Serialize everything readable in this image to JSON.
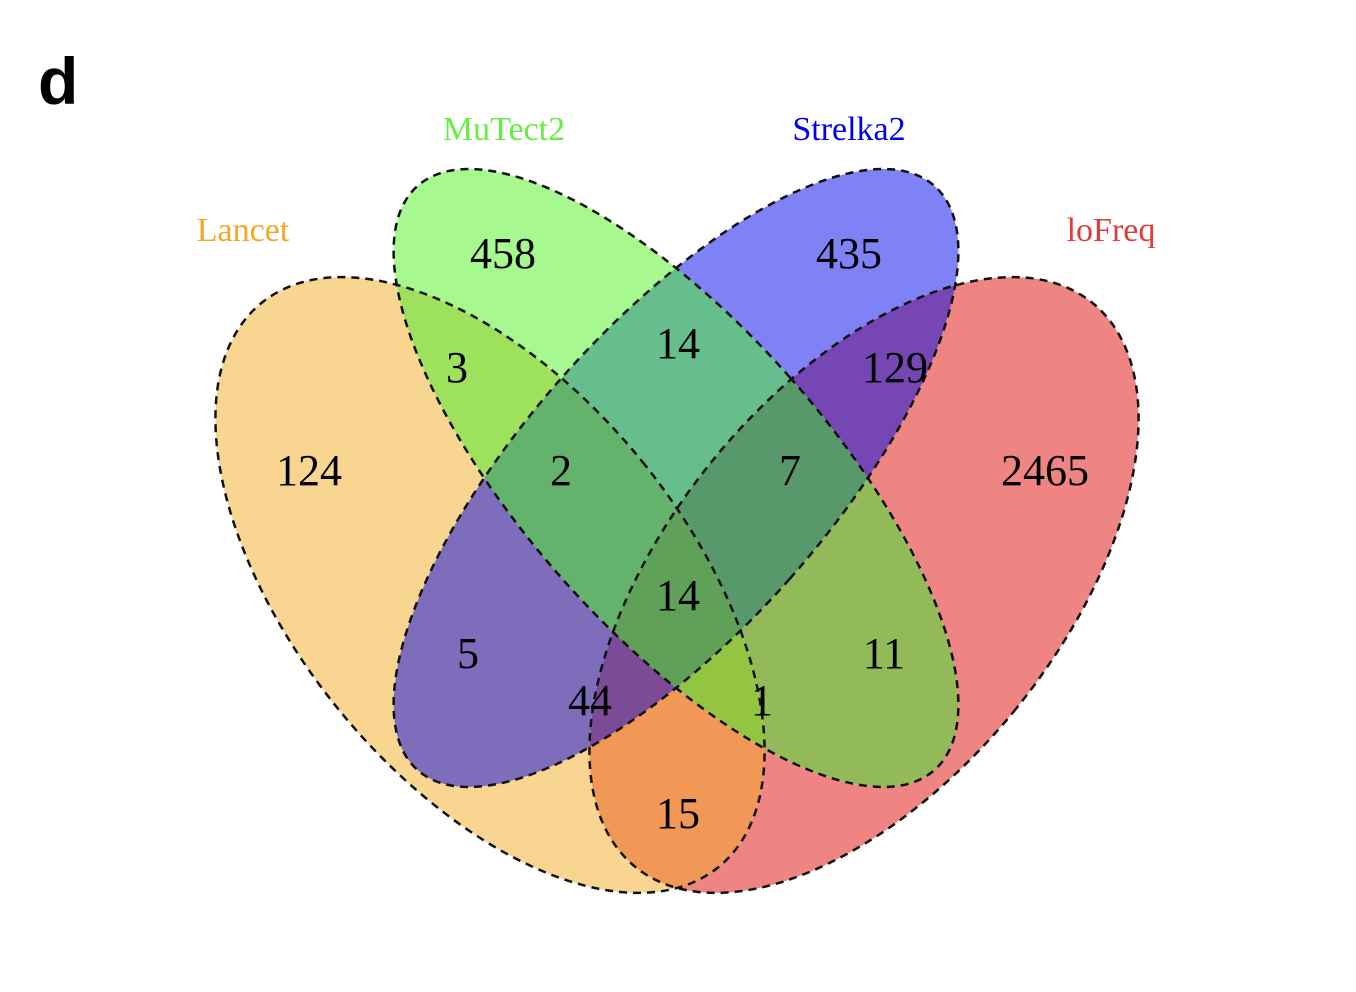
{
  "panel_label": "d",
  "sets": [
    {
      "key": "lancet",
      "name": "Lancet",
      "color": "#F5A623",
      "fill": "#F8D591"
    },
    {
      "key": "mutect2",
      "name": "MuTect2",
      "color": "#66EE44",
      "fill": "#A6F88F"
    },
    {
      "key": "strelka2",
      "name": "Strelka2",
      "color": "#0000EE",
      "fill": "#7F82F4"
    },
    {
      "key": "lofreq",
      "name": "loFreq",
      "color": "#E03C3C",
      "fill": "#EF8583"
    }
  ],
  "regions": [
    {
      "sets": [
        "lancet"
      ],
      "count": "124"
    },
    {
      "sets": [
        "mutect2"
      ],
      "count": "458"
    },
    {
      "sets": [
        "strelka2"
      ],
      "count": "435"
    },
    {
      "sets": [
        "lofreq"
      ],
      "count": "2465"
    },
    {
      "sets": [
        "lancet",
        "mutect2"
      ],
      "count": "3"
    },
    {
      "sets": [
        "mutect2",
        "strelka2"
      ],
      "count": "14"
    },
    {
      "sets": [
        "strelka2",
        "lofreq"
      ],
      "count": "129"
    },
    {
      "sets": [
        "lancet",
        "mutect2",
        "strelka2"
      ],
      "count": "2"
    },
    {
      "sets": [
        "mutect2",
        "strelka2",
        "lofreq"
      ],
      "count": "7"
    },
    {
      "sets": [
        "lancet",
        "mutect2",
        "strelka2",
        "lofreq"
      ],
      "count": "14"
    },
    {
      "sets": [
        "lancet",
        "strelka2"
      ],
      "count": "5"
    },
    {
      "sets": [
        "mutect2",
        "lofreq"
      ],
      "count": "11"
    },
    {
      "sets": [
        "lancet",
        "strelka2",
        "lofreq"
      ],
      "count": "44"
    },
    {
      "sets": [
        "lancet",
        "mutect2",
        "lofreq"
      ],
      "count": "1"
    },
    {
      "sets": [
        "lancet",
        "lofreq"
      ],
      "count": "15"
    }
  ]
}
